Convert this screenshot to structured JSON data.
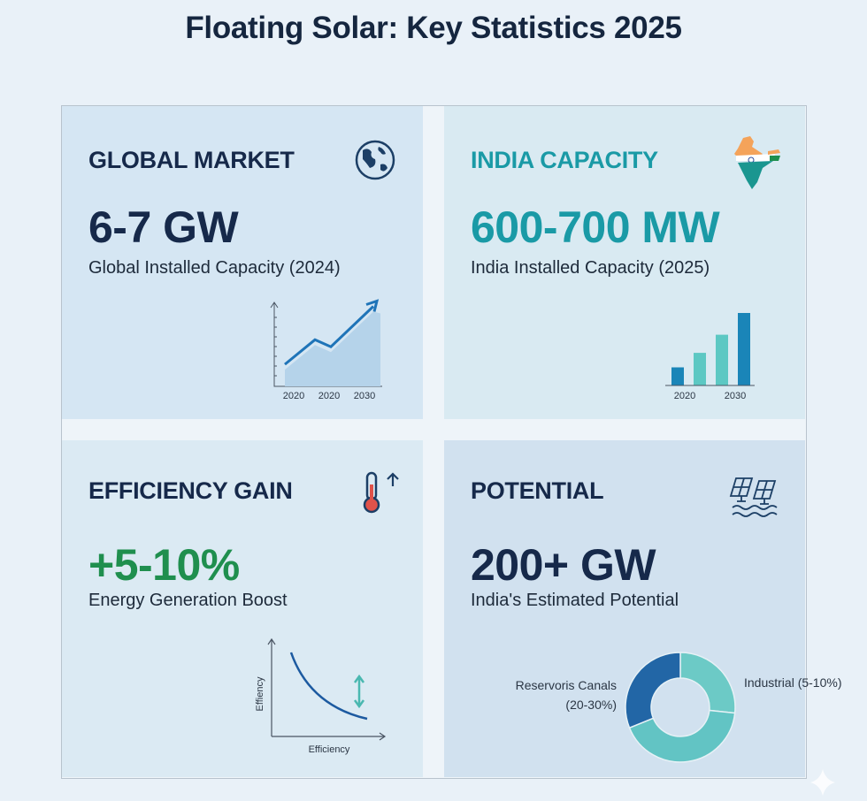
{
  "title": "Floating Solar: Key Statistics 2025",
  "cards": [
    {
      "heading": "GLOBAL MARKET",
      "value": "6-7 GW",
      "subtitle": "Global Installed Capacity (2024)",
      "icon": "globe-icon",
      "accent": "#16294a"
    },
    {
      "heading": "INDIA CAPACITY",
      "value": "600-700 MW",
      "subtitle": "India Installed Capacity (2025)",
      "icon": "india-map-flag-icon",
      "accent": "#1a9aa6"
    },
    {
      "heading": "EFFICIENCY GAIN",
      "value": "+5-10%",
      "subtitle": "Energy Generation Boost",
      "icon": "thermometer-up-icon",
      "accent": "#1f8f4e"
    },
    {
      "heading": "POTENTIAL",
      "value": "200+ GW",
      "subtitle": "India's Estimated Potential",
      "icon": "floating-solar-panels-icon",
      "accent": "#16294a"
    }
  ],
  "chart_data": [
    {
      "type": "area",
      "x_tick_labels": [
        "2020",
        "2020",
        "2030"
      ],
      "values": [
        1,
        2.4,
        2,
        4.3
      ],
      "color": "#1f74b8"
    },
    {
      "type": "bar",
      "x_tick_labels": [
        "2020",
        "2030"
      ],
      "values": [
        1,
        1.8,
        2.8,
        4
      ],
      "colors": [
        "#1a85b8",
        "#5cc8c3",
        "#5cc8c3",
        "#1a85b8"
      ]
    },
    {
      "type": "line",
      "xlabel": "Efficiency",
      "ylabel": "Effiency",
      "color": "#1c5aa0"
    },
    {
      "type": "pie",
      "labels": [
        "Reservoris Canals (20-30%)",
        "Industrial (5-10%)"
      ],
      "slices": [
        {
          "value": 96,
          "color": "#6ccac6"
        },
        {
          "value": 152,
          "color": "#62c4c4"
        },
        {
          "value": 112,
          "color": "#2266a6"
        }
      ]
    }
  ]
}
